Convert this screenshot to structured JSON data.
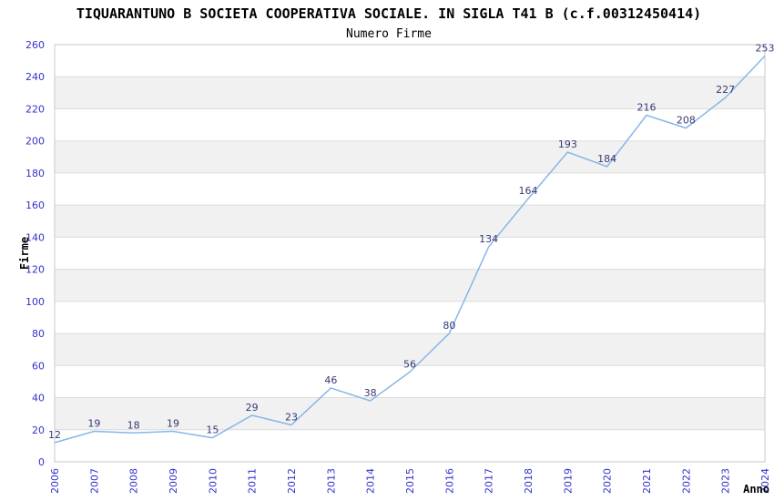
{
  "chart_data": {
    "type": "line",
    "title": "TIQUARANTUNO B SOCIETA COOPERATIVA SOCIALE. IN SIGLA T41 B (c.f.00312450414)",
    "subtitle": "Numero Firme",
    "xlabel": "Anno",
    "ylabel": "Firme",
    "x": [
      "2006",
      "2007",
      "2008",
      "2009",
      "2010",
      "2011",
      "2012",
      "2013",
      "2014",
      "2015",
      "2016",
      "2017",
      "2018",
      "2019",
      "2020",
      "2021",
      "2022",
      "2023",
      "2024"
    ],
    "values": [
      12,
      19,
      18,
      19,
      15,
      29,
      23,
      46,
      38,
      56,
      80,
      134,
      164,
      193,
      184,
      216,
      208,
      227,
      253
    ],
    "ylim": [
      0,
      260
    ],
    "ytick_step": 20,
    "grid": true,
    "banded_background": true,
    "legend_position": "none",
    "markers": false,
    "colors": {
      "line": "#86b7e8",
      "point_label": "#383878",
      "tick_label": "#3232cc",
      "title": "#3a3a3a",
      "subtitle": "#6e6e6e",
      "axis_title": "#3a3a3a",
      "band": "#f1f1f1",
      "grid": "#dcdcdc",
      "frame": "#c9c9c9"
    }
  }
}
